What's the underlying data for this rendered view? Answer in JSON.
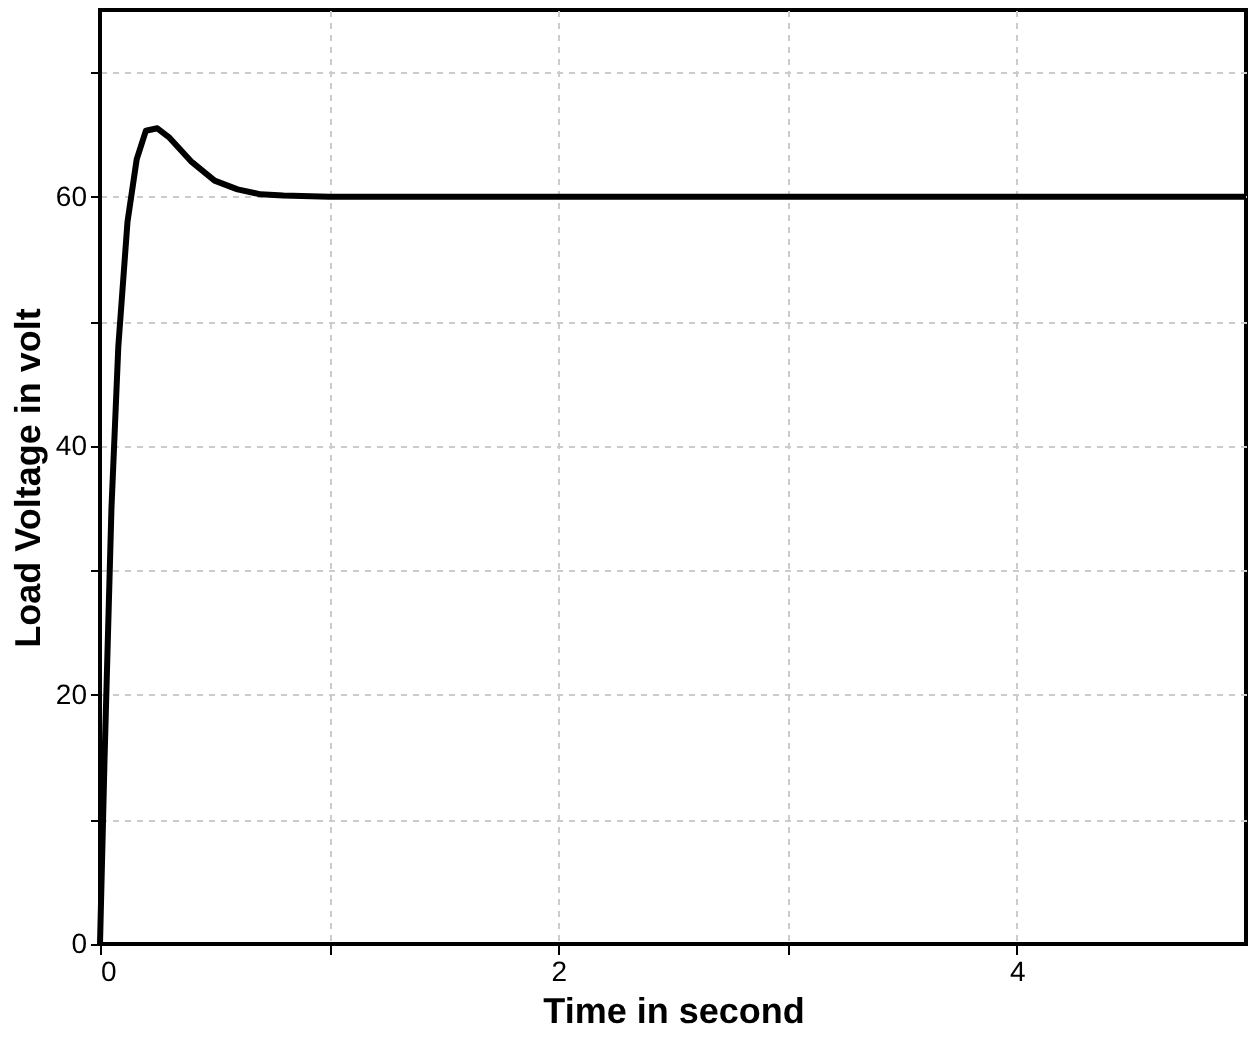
{
  "chart_data": {
    "type": "line",
    "xlabel": "Time in second",
    "ylabel": "Load Voltage in volt",
    "x": [
      0,
      0.02,
      0.05,
      0.08,
      0.12,
      0.16,
      0.2,
      0.25,
      0.3,
      0.4,
      0.5,
      0.6,
      0.7,
      0.8,
      1.0,
      1.2,
      2,
      3,
      4,
      5
    ],
    "series": [
      {
        "color": "#000000",
        "values": [
          0,
          15,
          35,
          48,
          58,
          63,
          65.3,
          65.5,
          64.8,
          62.8,
          61.3,
          60.6,
          60.2,
          60.1,
          60,
          60,
          60,
          60,
          60,
          60
        ]
      }
    ],
    "xlim": [
      0,
      5
    ],
    "xticks": [
      0,
      {
        "value": 1,
        "label": null
      },
      2,
      {
        "value": 3,
        "label": null
      },
      4
    ],
    "ylim": [
      0,
      75
    ],
    "yticks": [
      0,
      {
        "value": 10,
        "label": null
      },
      20,
      {
        "value": 30,
        "label": null
      },
      40,
      {
        "value": 50,
        "label": null
      },
      60,
      {
        "value": 70,
        "label": null
      }
    ],
    "grid": true,
    "marker": "none",
    "line_style": "solid"
  }
}
